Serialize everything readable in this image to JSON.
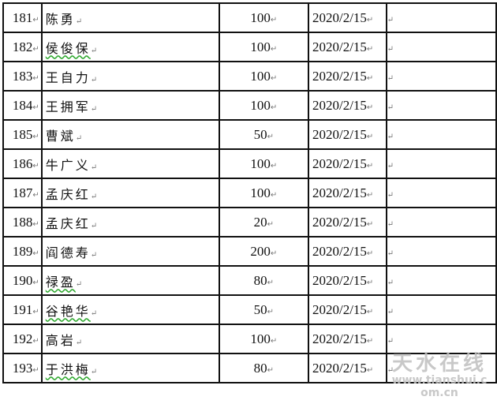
{
  "table": {
    "rows": [
      {
        "no": "181",
        "name": "陈勇",
        "amount": "100",
        "date": "2020/2/15",
        "flag": false
      },
      {
        "no": "182",
        "name": "侯俊保",
        "amount": "100",
        "date": "2020/2/15",
        "flag": true
      },
      {
        "no": "183",
        "name": "王自力",
        "amount": "100",
        "date": "2020/2/15",
        "flag": false
      },
      {
        "no": "184",
        "name": "王拥军",
        "amount": "100",
        "date": "2020/2/15",
        "flag": false
      },
      {
        "no": "185",
        "name": "曹斌",
        "amount": "50",
        "date": "2020/2/15",
        "flag": false
      },
      {
        "no": "186",
        "name": "牛广义",
        "amount": "100",
        "date": "2020/2/15",
        "flag": false
      },
      {
        "no": "187",
        "name": "孟庆红",
        "amount": "100",
        "date": "2020/2/15",
        "flag": false
      },
      {
        "no": "188",
        "name": "孟庆红",
        "amount": "20",
        "date": "2020/2/15",
        "flag": false
      },
      {
        "no": "189",
        "name": "阎德寿",
        "amount": "200",
        "date": "2020/2/15",
        "flag": false
      },
      {
        "no": "190",
        "name": "禄盈",
        "amount": "80",
        "date": "2020/2/15",
        "flag": true
      },
      {
        "no": "191",
        "name": "谷艳华",
        "amount": "50",
        "date": "2020/2/15",
        "flag": true
      },
      {
        "no": "192",
        "name": "高岩",
        "amount": "100",
        "date": "2020/2/15",
        "flag": false
      },
      {
        "no": "193",
        "name": "于洪梅",
        "amount": "80",
        "date": "2020/2/15",
        "flag": true
      }
    ]
  },
  "watermark": {
    "text": "天水在线",
    "url": "www.tianshui.com.cn"
  }
}
